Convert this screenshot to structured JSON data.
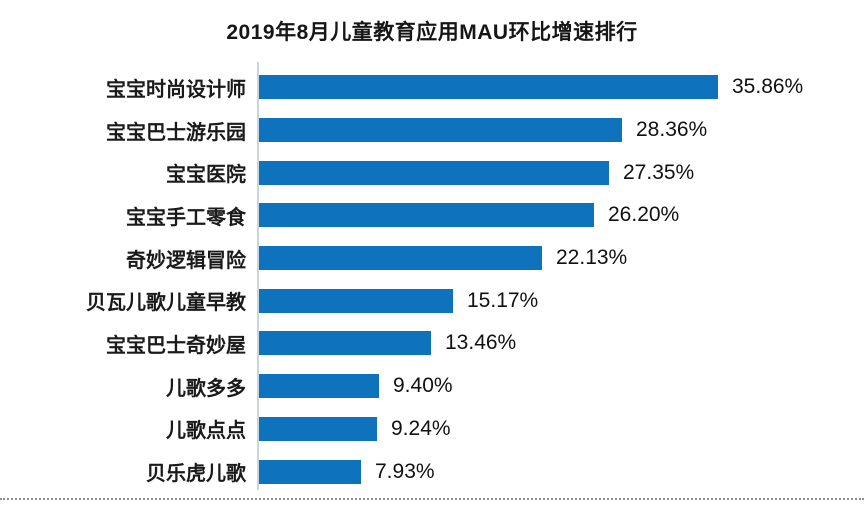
{
  "title": "2019年8月儿童教育应用MAU环比增速排行",
  "colors": {
    "bar": "#0e72bd",
    "axis_line": "#cdd4dc",
    "text": "#161616",
    "dotted_divider": "#8f8f8f"
  },
  "chart_data": {
    "type": "bar",
    "orientation": "horizontal",
    "title": "2019年8月儿童教育应用MAU环比增速排行",
    "categories": [
      "宝宝时尚设计师",
      "宝宝巴士游乐园",
      "宝宝医院",
      "宝宝手工零食",
      "奇妙逻辑冒险",
      "贝瓦儿歌儿童早教",
      "宝宝巴士奇妙屋",
      "儿歌多多",
      "儿歌点点",
      "贝乐虎儿歌"
    ],
    "values": [
      35.86,
      28.36,
      27.35,
      26.2,
      22.13,
      15.17,
      13.46,
      9.4,
      9.24,
      7.93
    ],
    "value_labels": [
      "35.86%",
      "28.36%",
      "27.35%",
      "26.20%",
      "22.13%",
      "15.17%",
      "13.46%",
      "9.40%",
      "9.24%",
      "7.93%"
    ],
    "unit": "%",
    "xlabel": "",
    "ylabel": "",
    "xlim": [
      0,
      36
    ],
    "grid": false,
    "legend": "none",
    "value_label_position": "end-of-bar",
    "sort_order": "descending"
  }
}
